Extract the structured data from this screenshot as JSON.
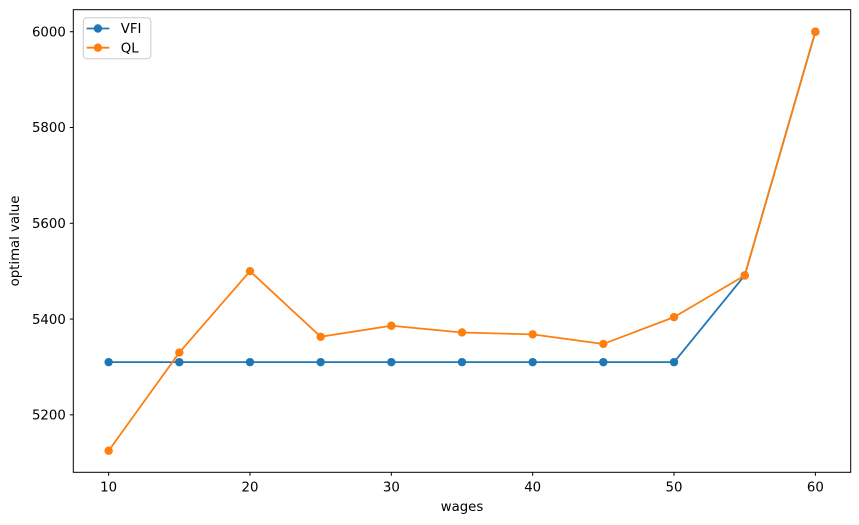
{
  "chart_data": {
    "type": "line",
    "title": "",
    "xlabel": "wages",
    "ylabel": "optimal value",
    "x": [
      10,
      15,
      20,
      25,
      30,
      35,
      40,
      45,
      50,
      55,
      60
    ],
    "series": [
      {
        "name": "VFI",
        "color": "#1f77b4",
        "marker": "circle",
        "values": [
          5310,
          5310,
          5310,
          5310,
          5310,
          5310,
          5310,
          5310,
          5310,
          5491,
          6000
        ]
      },
      {
        "name": "QL",
        "color": "#ff7f0e",
        "marker": "circle",
        "values": [
          5125,
          5330,
          5500,
          5363,
          5386,
          5372,
          5368,
          5348,
          5404,
          5491,
          6000
        ]
      }
    ],
    "xlim": [
      7.5,
      62.5
    ],
    "ylim": [
      5080,
      6046
    ],
    "xticks": [
      10,
      20,
      30,
      40,
      50,
      60
    ],
    "yticks": [
      5200,
      5400,
      5600,
      5800,
      6000
    ],
    "grid": false,
    "legend": {
      "position": "upper left",
      "entries": [
        "VFI",
        "QL"
      ]
    },
    "background": "#ffffff",
    "axis_color": "#000000",
    "legend_border_color": "#cccccc"
  }
}
